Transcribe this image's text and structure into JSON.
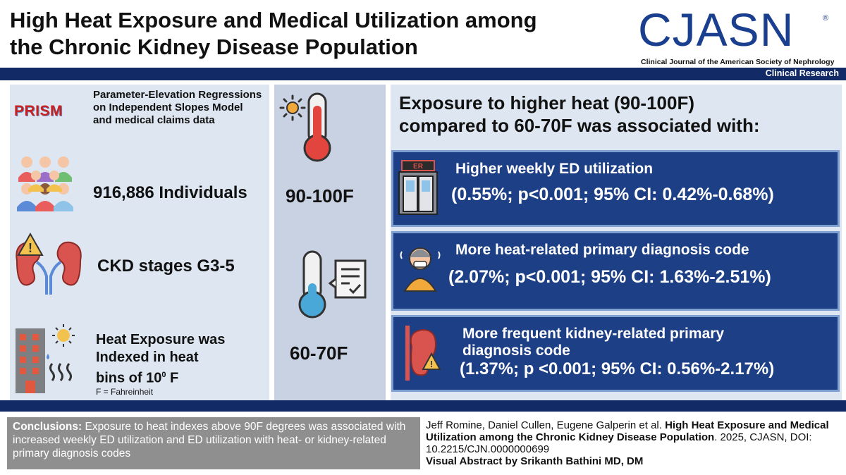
{
  "header": {
    "title_line1": "High Heat Exposure and Medical Utilization among",
    "title_line2": "the Chronic Kidney Disease Population",
    "logo_text": "CJASN",
    "logo_subtitle": "Clinical Journal of the American Society of Nephrology",
    "section_label": "Clinical Research"
  },
  "left": {
    "prism_label": "PRISM",
    "prism_desc": "Parameter-Elevation Regressions on Independent Slopes Model and medical claims data",
    "individuals": "916,886 Individuals",
    "ckd": "CKD stages G3-5",
    "heat_line1": "Heat Exposure was",
    "heat_line2": "Indexed in heat",
    "heat_line3a": "bins of 10",
    "heat_sup": "0",
    "heat_line3b": " F",
    "footnote": "F = Fahreinheit"
  },
  "middle": {
    "temp_high": "90-100F",
    "temp_low": "60-70F"
  },
  "right": {
    "heading_line1": "Exposure to higher heat (90-100F)",
    "heading_line2": "compared to 60-70F was associated with:",
    "er_sign": "ER",
    "results": [
      {
        "line1": "Higher weekly ED utilization",
        "line2": "(0.55%; p<0.001; 95% CI: 0.42%-0.68%)"
      },
      {
        "line1": "More heat-related primary diagnosis code",
        "line2": "(2.07%; p<0.001; 95% CI: 1.63%-2.51%)"
      },
      {
        "line1": "More frequent kidney-related primary",
        "line1b": "diagnosis code",
        "line2": "(1.37%; p <0.001; 95% CI: 0.56%-2.17%)"
      }
    ]
  },
  "footer": {
    "conclusions_label": "Conclusions:",
    "conclusions_text": " Exposure to heat indexes above 90F degrees was associated with increased weekly ED utilization and ED utilization with heat- or kidney-related primary diagnosis codes",
    "cite_authors": "Jeff Romine, Daniel Cullen, Eugene Galperin et al. ",
    "cite_title": "High Heat Exposure and Medical Utilization among the Chronic Kidney Disease Population",
    "cite_rest": ". 2025, CJASN,  DOI: 10.2215/CJN.0000000699",
    "visual_abstract": "Visual Abstract by Srikanth Bathini MD, DM"
  },
  "colors": {
    "navy": "#122a66",
    "result_box": "#1d3f86",
    "panel_light": "#dde6f1",
    "panel_mid": "#c9d2e2",
    "prism_red": "#c8201f"
  },
  "icons": [
    "people-group-icon",
    "kidney-warning-icon",
    "building-sun-heat-icon",
    "sun-icon",
    "thermometer-hot-icon",
    "thermometer-cold-icon",
    "checklist-icon",
    "er-door-icon",
    "heat-sick-person-icon",
    "kidney-alert-icon"
  ]
}
